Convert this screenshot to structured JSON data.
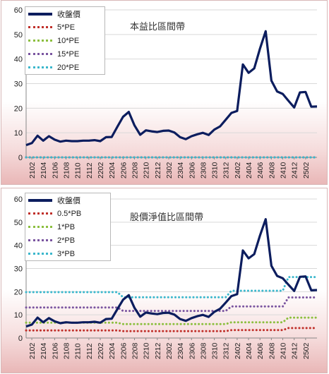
{
  "colors": {
    "price": "#0c1d5e",
    "band1": "#c0302a",
    "band2": "#8cbf3f",
    "band3": "#7a55a0",
    "band4": "#3bb7cc"
  },
  "chart_data": [
    {
      "type": "line",
      "title": "本益比區間帶",
      "ylim": [
        0,
        60
      ],
      "yticks": [
        0,
        10,
        20,
        30,
        40,
        50,
        60
      ],
      "xtick_labels": [
        "2102",
        "2104",
        "2106",
        "2108",
        "2110",
        "2112",
        "2202",
        "2204",
        "2206",
        "2208",
        "2210",
        "2212",
        "2302",
        "2304",
        "2306",
        "2308",
        "2310",
        "2312",
        "2402",
        "2404",
        "2406",
        "2408",
        "2410",
        "2412",
        "2502"
      ],
      "legend_position": "top-left",
      "series": [
        {
          "name": "收盤價",
          "values": [
            5.0,
            5.8,
            8.8,
            6.8,
            8.6,
            7.2,
            6.4,
            6.8,
            6.6,
            6.6,
            6.8,
            6.8,
            7.0,
            6.6,
            8.2,
            8.3,
            12.5,
            16.5,
            18.5,
            13.0,
            9.2,
            11.0,
            10.6,
            10.3,
            10.8,
            10.9,
            10.1,
            8.2,
            7.4,
            8.6,
            9.4,
            10.0,
            9.1,
            11.3,
            12.6,
            15.3,
            18.1,
            18.9,
            37.8,
            34.4,
            36.2,
            44.2,
            51.3,
            31.2,
            26.8,
            25.8,
            23.0,
            20.3,
            26.4,
            26.6,
            20.6,
            20.7
          ]
        },
        {
          "name": "5*PE",
          "constant": 0
        },
        {
          "name": "10*PE",
          "constant": 0
        },
        {
          "name": "15*PE",
          "constant": 0
        },
        {
          "name": "20*PE",
          "constant": 0
        }
      ]
    },
    {
      "type": "line",
      "title": "股價淨值比區間帶",
      "ylim": [
        0,
        60
      ],
      "yticks": [
        0,
        10,
        20,
        30,
        40,
        50,
        60
      ],
      "xtick_labels": [
        "2102",
        "2104",
        "2106",
        "2108",
        "2110",
        "2112",
        "2202",
        "2204",
        "2206",
        "2208",
        "2210",
        "2212",
        "2302",
        "2304",
        "2306",
        "2308",
        "2310",
        "2312",
        "2402",
        "2404",
        "2406",
        "2408",
        "2410",
        "2412",
        "2502"
      ],
      "legend_position": "top-left",
      "series": [
        {
          "name": "收盤價",
          "values": [
            5.0,
            5.8,
            8.8,
            6.8,
            8.6,
            7.2,
            6.4,
            6.8,
            6.6,
            6.6,
            6.8,
            6.8,
            7.0,
            6.6,
            8.2,
            8.3,
            12.5,
            16.5,
            18.5,
            13.0,
            9.2,
            11.0,
            10.6,
            10.3,
            10.8,
            10.9,
            10.1,
            8.2,
            7.4,
            8.6,
            9.4,
            10.0,
            9.1,
            11.3,
            12.6,
            15.3,
            18.1,
            18.9,
            37.8,
            34.4,
            36.2,
            44.2,
            51.3,
            31.2,
            26.8,
            25.8,
            23.0,
            20.3,
            26.4,
            26.6,
            20.6,
            20.7
          ]
        },
        {
          "name": "0.5*PB",
          "segments": [
            [
              0,
              17,
              3.3
            ],
            [
              17,
              36,
              3.0
            ],
            [
              36,
              46,
              3.4
            ],
            [
              46,
              52,
              4.3
            ]
          ]
        },
        {
          "name": "1*PB",
          "segments": [
            [
              0,
              17,
              6.6
            ],
            [
              17,
              36,
              6.0
            ],
            [
              36,
              46,
              6.8
            ],
            [
              46,
              52,
              8.8
            ]
          ]
        },
        {
          "name": "2*PB",
          "segments": [
            [
              0,
              17,
              13.2
            ],
            [
              17,
              36,
              11.7
            ],
            [
              36,
              46,
              13.6
            ],
            [
              46,
              52,
              17.5
            ]
          ]
        },
        {
          "name": "3*PB",
          "segments": [
            [
              0,
              17,
              19.8
            ],
            [
              17,
              36,
              17.6
            ],
            [
              36,
              46,
              20.4
            ],
            [
              46,
              52,
              26.3
            ]
          ]
        }
      ]
    }
  ]
}
